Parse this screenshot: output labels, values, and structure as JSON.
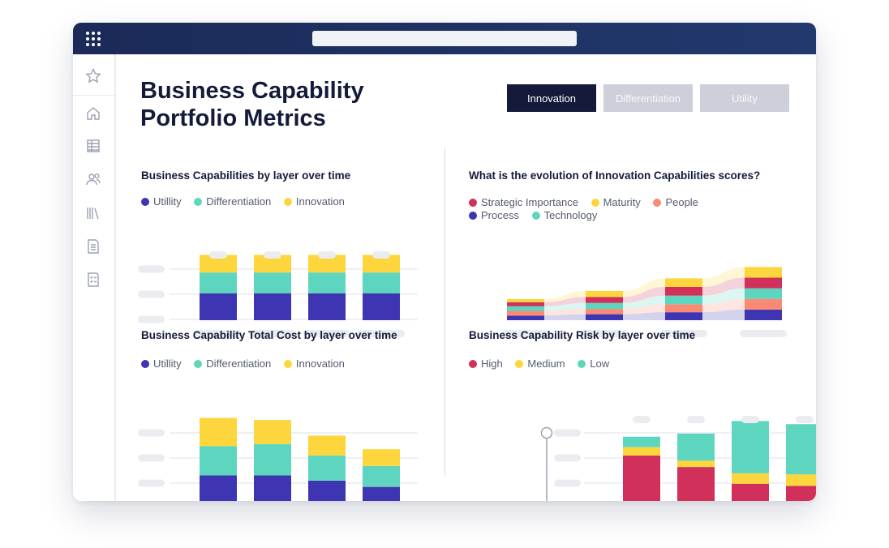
{
  "app": {
    "title": "Business Capability Portfolio Metrics",
    "title_line1": "Business Capability",
    "title_line2": "Portfolio Metrics"
  },
  "colors": {
    "titlebar": "#1b2a57",
    "utility": "#3d35b2",
    "differentiation": "#5ed6bf",
    "innovation": "#fdd63e",
    "strategic": "#d0305a",
    "maturity": "#fdd63e",
    "people": "#fa8a73",
    "process": "#3d35b2",
    "technology": "#5ed6bf",
    "high": "#d0305a",
    "medium": "#fdd63e",
    "low": "#5ed6bf",
    "placeholder": "#ebecef"
  },
  "sidebar": {
    "items": [
      {
        "icon": "star-icon"
      },
      {
        "icon": "home-icon"
      },
      {
        "icon": "table-icon"
      },
      {
        "icon": "users-icon"
      },
      {
        "icon": "library-icon"
      },
      {
        "icon": "document-icon"
      },
      {
        "icon": "checklist-icon"
      }
    ]
  },
  "tabs": [
    {
      "label": "Innovation",
      "active": true
    },
    {
      "label": "Differentiation",
      "active": false
    },
    {
      "label": "Utility",
      "active": false
    }
  ],
  "sections": {
    "capabilities": {
      "title": "Business Capabilities by layer over time",
      "legend": [
        "Utillity",
        "Differentiation",
        "Innovation"
      ]
    },
    "evolution": {
      "title": "What is the evolution of Innovation Capabilities scores?",
      "legend": [
        "Strategic Importance",
        "Maturity",
        "People",
        "Process",
        "Technology"
      ]
    },
    "cost": {
      "title": "Business Capability Total Cost by layer over time",
      "legend": [
        "Utillity",
        "Differentiation",
        "Innovation"
      ]
    },
    "risk": {
      "title": "Business Capability Risk by layer over time",
      "legend": [
        "High",
        "Medium",
        "Low"
      ]
    }
  },
  "chart_data": [
    {
      "type": "bar",
      "stacked": true,
      "title": "Business Capabilities by layer over time",
      "categories": [
        "",
        "",
        "",
        ""
      ],
      "series": [
        {
          "name": "Utillity",
          "values": [
            26,
            26,
            26,
            26
          ]
        },
        {
          "name": "Differentiation",
          "values": [
            20,
            20,
            20,
            20
          ]
        },
        {
          "name": "Innovation",
          "values": [
            17,
            17,
            17,
            17
          ]
        }
      ],
      "ylim": [
        0,
        100
      ],
      "grid": true
    },
    {
      "type": "area",
      "stacked": true,
      "title": "What is the evolution of Innovation Capabilities scores?",
      "categories": [
        "",
        "",
        "",
        ""
      ],
      "series": [
        {
          "name": "Process",
          "values": [
            7,
            9,
            12,
            16
          ]
        },
        {
          "name": "People",
          "values": [
            7,
            8,
            12,
            16
          ]
        },
        {
          "name": "Technology",
          "values": [
            7,
            9,
            13,
            16
          ]
        },
        {
          "name": "Strategic Importance",
          "values": [
            6,
            9,
            13,
            16
          ]
        },
        {
          "name": "Maturity",
          "values": [
            5,
            9,
            13,
            16
          ]
        }
      ],
      "ylim": [
        0,
        100
      ],
      "grid": false
    },
    {
      "type": "bar",
      "stacked": true,
      "title": "Business Capability Total Cost by layer over time",
      "categories": [
        "",
        "",
        "",
        ""
      ],
      "series": [
        {
          "name": "Utillity",
          "values": [
            33,
            33,
            28,
            22
          ]
        },
        {
          "name": "Differentiation",
          "values": [
            28,
            30,
            24,
            20
          ]
        },
        {
          "name": "Innovation",
          "values": [
            27,
            23,
            19,
            16
          ]
        }
      ],
      "ylim": [
        0,
        100
      ],
      "grid": true
    },
    {
      "type": "bar",
      "stacked": true,
      "title": "Business Capability Risk by layer over time",
      "categories": [
        "",
        "",
        "",
        ""
      ],
      "series": [
        {
          "name": "High",
          "values": [
            52,
            41,
            25,
            23
          ]
        },
        {
          "name": "Medium",
          "values": [
            8,
            6,
            10,
            11
          ]
        },
        {
          "name": "Low",
          "values": [
            10,
            26,
            50,
            48
          ]
        }
      ],
      "ylim": [
        0,
        100
      ],
      "grid": true
    }
  ]
}
